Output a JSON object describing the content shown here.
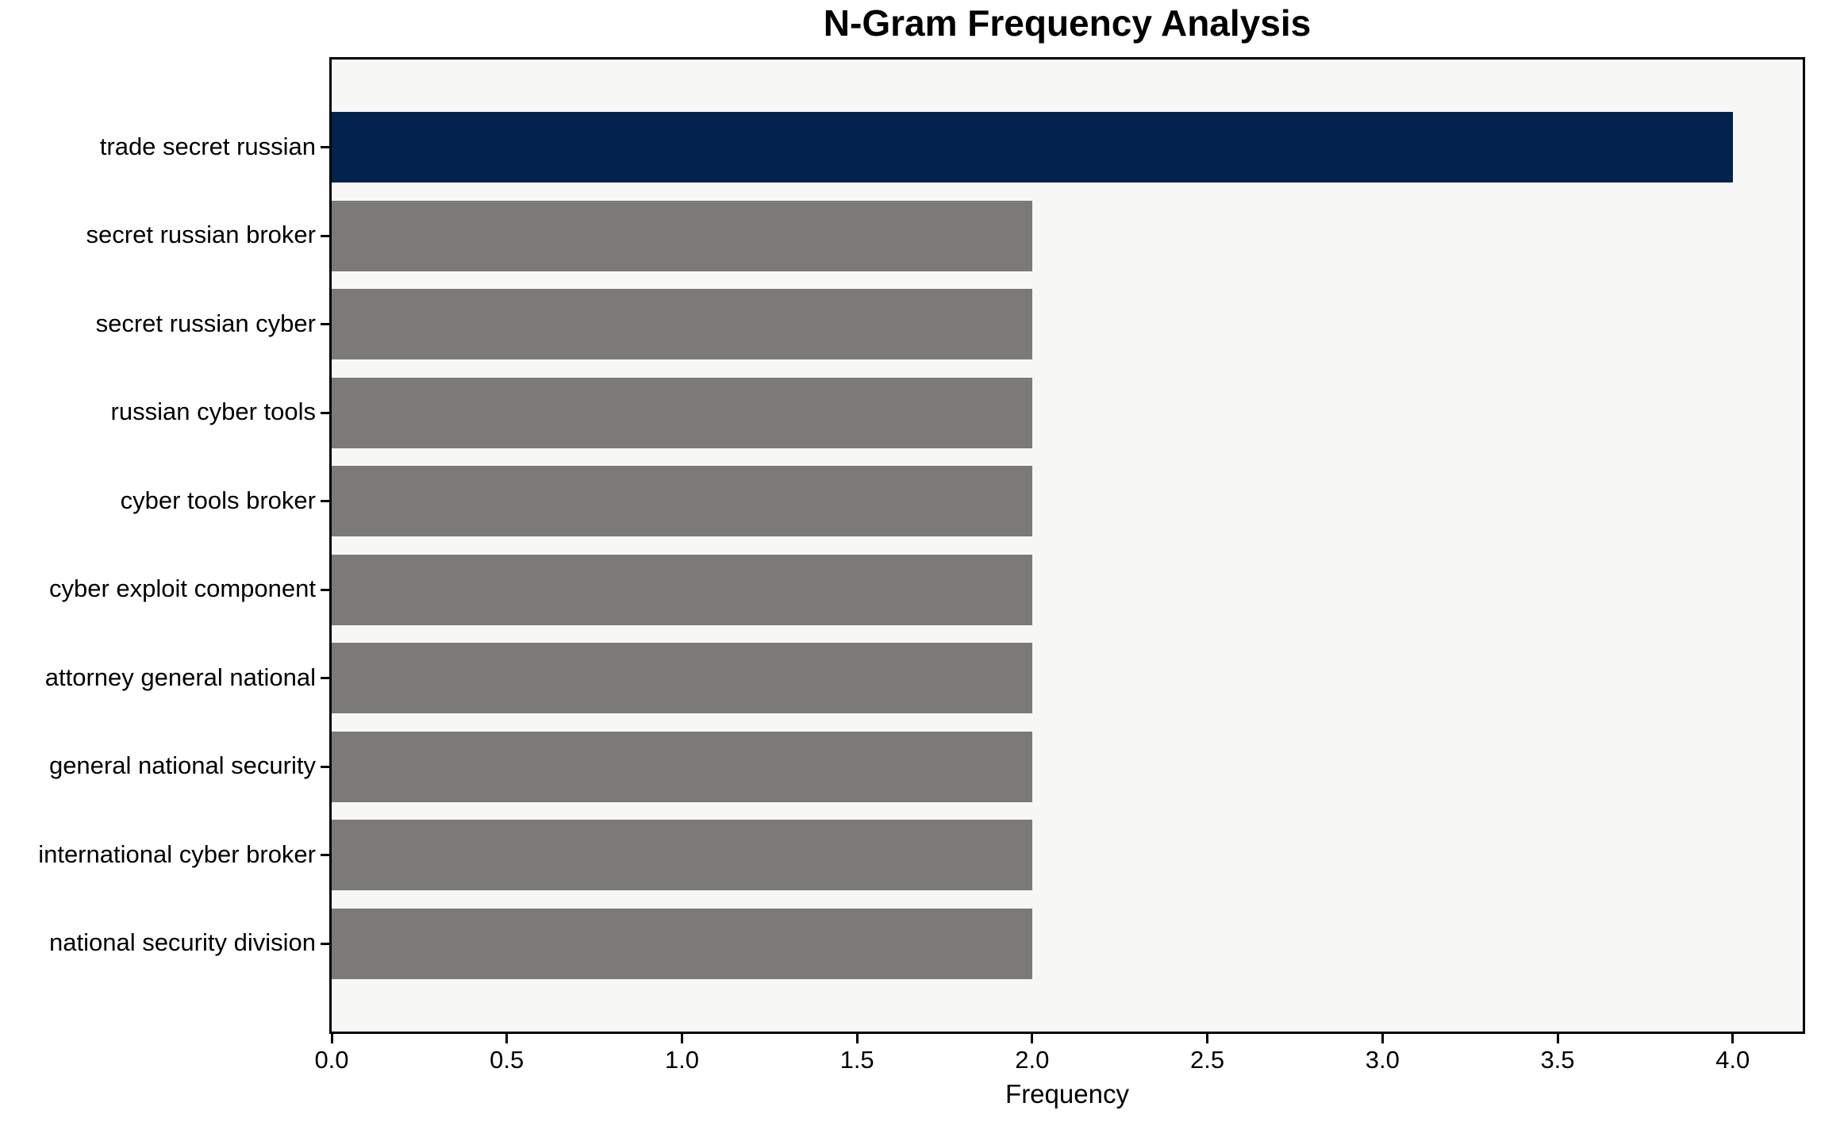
{
  "chart_data": {
    "type": "bar",
    "orientation": "horizontal",
    "title": "N-Gram Frequency Analysis",
    "xlabel": "Frequency",
    "ylabel": "",
    "categories": [
      "trade secret russian",
      "secret russian broker",
      "secret russian cyber",
      "russian cyber tools",
      "cyber tools broker",
      "cyber exploit component",
      "attorney general national",
      "general national security",
      "international cyber broker",
      "national security division"
    ],
    "values": [
      4.0,
      2.0,
      2.0,
      2.0,
      2.0,
      2.0,
      2.0,
      2.0,
      2.0,
      2.0
    ],
    "bar_colors": [
      "#02234d",
      "#7b7a78",
      "#7b7a78",
      "#7b7a78",
      "#7b7a78",
      "#7b7a78",
      "#7b7a78",
      "#7b7a78",
      "#7b7a78",
      "#7b7a78"
    ],
    "xlim": [
      0,
      4.2
    ],
    "x_ticks": [
      0.0,
      0.5,
      1.0,
      1.5,
      2.0,
      2.5,
      3.0,
      3.5,
      4.0
    ],
    "x_tick_labels": [
      "0.0",
      "0.5",
      "1.0",
      "1.5",
      "2.0",
      "2.5",
      "3.0",
      "3.5",
      "4.0"
    ],
    "grid": false,
    "legend": false,
    "plot_background": "#f7f7f6",
    "frame_color": "#000000"
  }
}
